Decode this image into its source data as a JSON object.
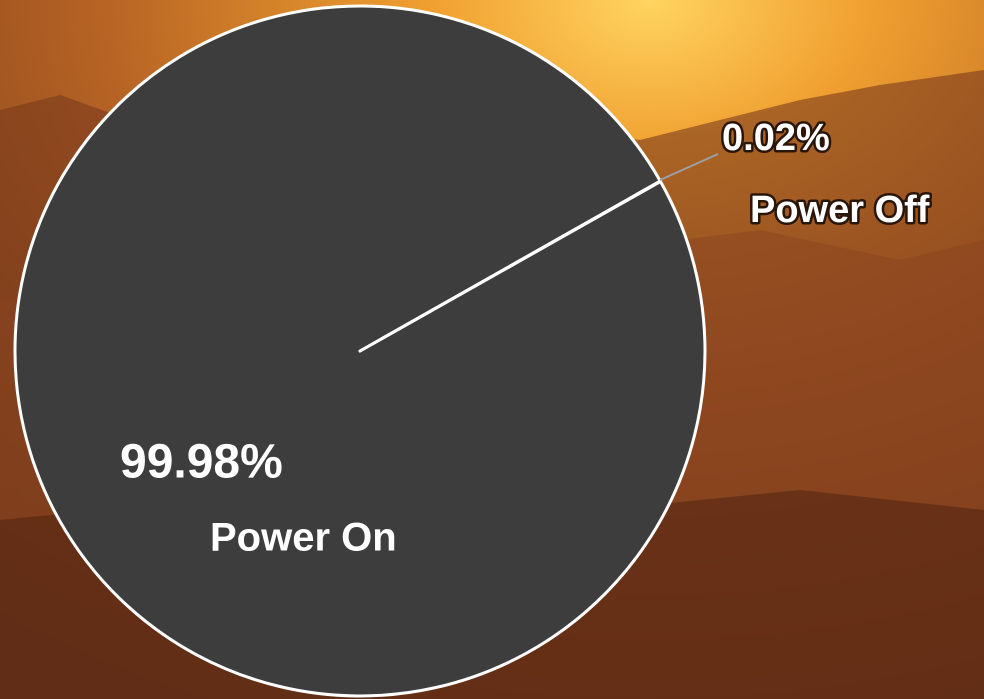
{
  "chart_data": {
    "type": "pie",
    "categories": [
      "Power On",
      "Power Off"
    ],
    "values": [
      99.98,
      0.02
    ],
    "value_labels": [
      "99.98%",
      "0.02%"
    ],
    "colors": [
      "#3d3d3d",
      "#3d3d3d"
    ]
  }
}
